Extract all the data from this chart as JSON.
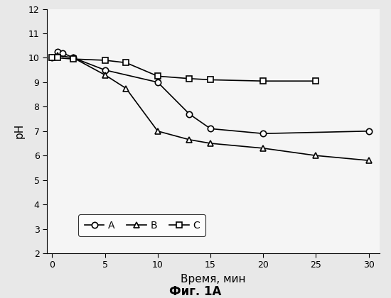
{
  "series_A": {
    "x": [
      0,
      0.5,
      1,
      2,
      5,
      10,
      13,
      15,
      20,
      30
    ],
    "y": [
      10.0,
      10.25,
      10.2,
      10.0,
      9.5,
      9.0,
      7.7,
      7.1,
      6.9,
      7.0
    ],
    "label": "A",
    "marker": "o"
  },
  "series_B": {
    "x": [
      0,
      0.5,
      2,
      5,
      7,
      10,
      13,
      15,
      20,
      25,
      30
    ],
    "y": [
      10.0,
      10.1,
      10.0,
      9.3,
      8.75,
      7.0,
      6.65,
      6.5,
      6.3,
      6.0,
      5.8
    ],
    "label": "B",
    "marker": "^"
  },
  "series_C": {
    "x": [
      0,
      0.5,
      2,
      5,
      7,
      10,
      13,
      15,
      20,
      25
    ],
    "y": [
      10.0,
      10.0,
      9.95,
      9.9,
      9.8,
      9.25,
      9.15,
      9.1,
      9.05,
      9.05
    ],
    "label": "C",
    "marker": "s"
  },
  "xlabel": "Время, мин",
  "ylabel": "рН",
  "caption": "Фиг. 1A",
  "xlim": [
    -0.5,
    31
  ],
  "ylim": [
    2,
    12
  ],
  "xticks": [
    0,
    5,
    10,
    15,
    20,
    25,
    30
  ],
  "yticks": [
    2,
    3,
    4,
    5,
    6,
    7,
    8,
    9,
    10,
    11,
    12
  ],
  "linewidth": 1.2,
  "markersize": 6,
  "color": "#000000",
  "background_color": "#f0f0f0"
}
